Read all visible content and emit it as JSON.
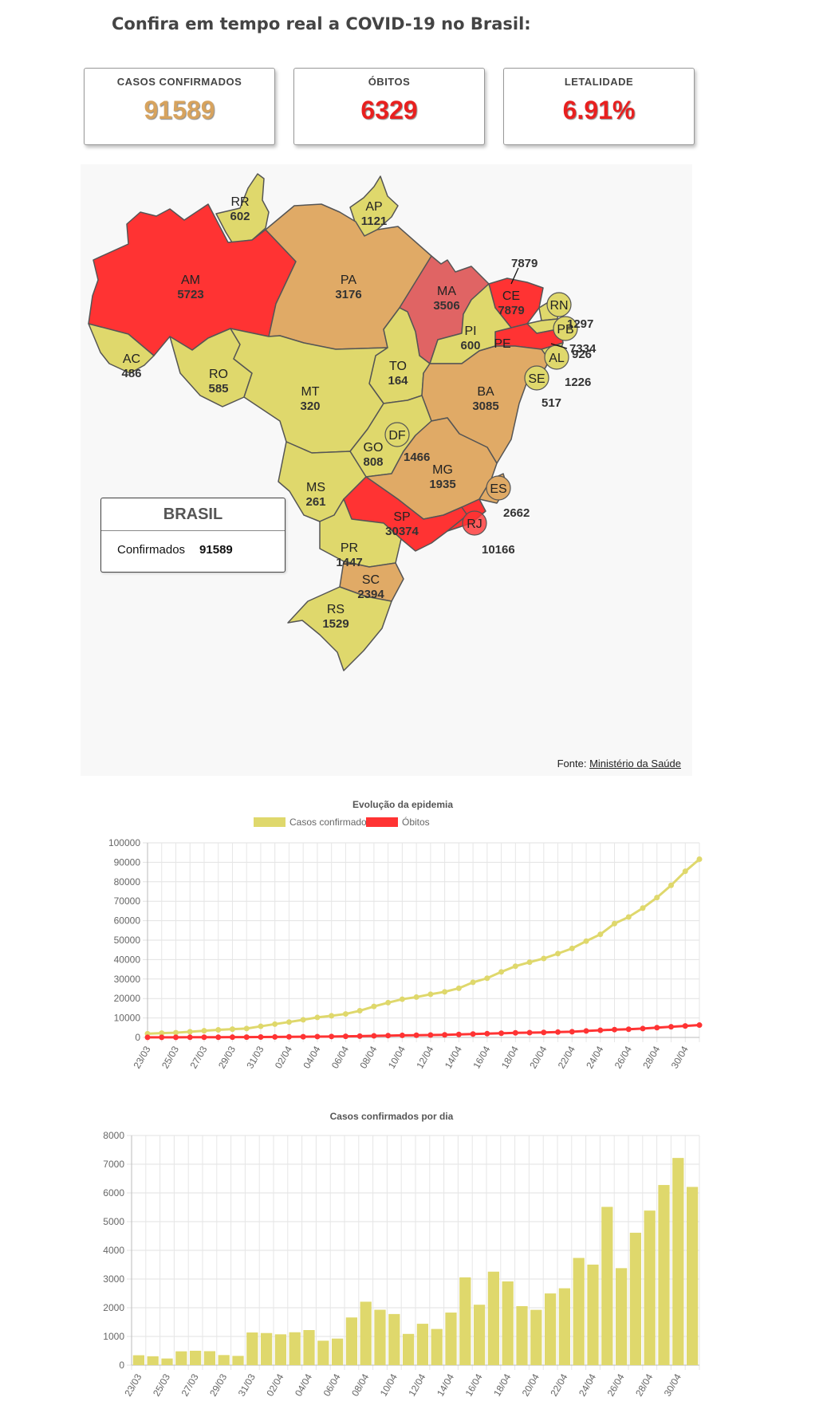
{
  "headline": "Confira em tempo real a COVID-19 no Brasil:",
  "cards": [
    {
      "label": "CASOS CONFIRMADOS",
      "value": "91589",
      "color": "#d7a35e"
    },
    {
      "label": "ÓBITOS",
      "value": "6329",
      "color": "#e8201f"
    },
    {
      "label": "LETALIDADE",
      "value": "6.91%",
      "color": "#e8201f"
    }
  ],
  "colors": {
    "low": "#dfd86c",
    "mid": "#e0aa66",
    "high": "#ff3333",
    "mixed": "#e06464"
  },
  "map": {
    "states": [
      {
        "abbr": "RR",
        "value": "602"
      },
      {
        "abbr": "AP",
        "value": "1121"
      },
      {
        "abbr": "AM",
        "value": "5723"
      },
      {
        "abbr": "PA",
        "value": "3176"
      },
      {
        "abbr": "MA",
        "value": "3506"
      },
      {
        "abbr": "CE",
        "value": "7879"
      },
      {
        "abbr": "RN",
        "value": "1297"
      },
      {
        "abbr": "PB",
        "value": "926"
      },
      {
        "abbr": "PE",
        "value": "7334"
      },
      {
        "abbr": "AL",
        "value": "1226"
      },
      {
        "abbr": "SE",
        "value": "517"
      },
      {
        "abbr": "PI",
        "value": "600"
      },
      {
        "abbr": "AC",
        "value": "486"
      },
      {
        "abbr": "RO",
        "value": "585"
      },
      {
        "abbr": "TO",
        "value": "164"
      },
      {
        "abbr": "MT",
        "value": "320"
      },
      {
        "abbr": "BA",
        "value": "3085"
      },
      {
        "abbr": "DF",
        "value": "1466"
      },
      {
        "abbr": "GO",
        "value": "808"
      },
      {
        "abbr": "MG",
        "value": "1935"
      },
      {
        "abbr": "ES",
        "value": "2662"
      },
      {
        "abbr": "MS",
        "value": "261"
      },
      {
        "abbr": "SP",
        "value": "30374"
      },
      {
        "abbr": "RJ",
        "value": "10166"
      },
      {
        "abbr": "PR",
        "value": "1447"
      },
      {
        "abbr": "SC",
        "value": "2394"
      },
      {
        "abbr": "RS",
        "value": "1529"
      }
    ],
    "legend_title": "BRASIL",
    "legend_label": "Confirmados",
    "legend_value": "91589",
    "source_prefix": "Fonte:",
    "source_link": "Ministério da Saúde"
  },
  "chart_data": [
    {
      "type": "line",
      "title": "Evolução da epidemia",
      "x": [
        "23/03",
        "24/03",
        "25/03",
        "26/03",
        "27/03",
        "28/03",
        "29/03",
        "30/03",
        "31/03",
        "01/04",
        "02/04",
        "03/04",
        "04/04",
        "05/04",
        "06/04",
        "07/04",
        "08/04",
        "09/04",
        "10/04",
        "11/04",
        "12/04",
        "13/04",
        "14/04",
        "15/04",
        "16/04",
        "17/04",
        "18/04",
        "19/04",
        "20/04",
        "21/04",
        "22/04",
        "23/04",
        "24/04",
        "25/04",
        "26/04",
        "27/04",
        "28/04",
        "29/04",
        "30/04",
        "01/05"
      ],
      "x_tick_labels": [
        "23/03",
        "25/03",
        "27/03",
        "29/03",
        "31/03",
        "02/04",
        "04/04",
        "06/04",
        "08/04",
        "10/04",
        "12/04",
        "14/04",
        "16/04",
        "18/04",
        "20/04",
        "22/04",
        "24/04",
        "26/04",
        "28/04",
        "30/04"
      ],
      "series": [
        {
          "name": "Casos confirmados",
          "color": "#dfd86c",
          "values": [
            1891,
            2201,
            2433,
            2915,
            3417,
            3904,
            4256,
            4579,
            5717,
            6836,
            7910,
            9056,
            10278,
            11130,
            12056,
            13717,
            15927,
            17857,
            19638,
            20727,
            22169,
            23430,
            25262,
            28320,
            30425,
            33682,
            36599,
            38654,
            40581,
            43079,
            45757,
            49492,
            52995,
            58509,
            61888,
            66501,
            71886,
            78162,
            85380,
            91589
          ]
        },
        {
          "name": "Óbitos",
          "color": "#ff3333",
          "values": [
            34,
            46,
            57,
            77,
            92,
            111,
            136,
            159,
            201,
            240,
            299,
            359,
            432,
            486,
            553,
            667,
            800,
            941,
            1056,
            1124,
            1223,
            1328,
            1532,
            1736,
            1924,
            2141,
            2347,
            2462,
            2575,
            2741,
            2906,
            3313,
            3670,
            4016,
            4205,
            4543,
            5017,
            5466,
            5901,
            6329
          ]
        }
      ],
      "ylim": [
        0,
        100000
      ],
      "y_ticks": [
        "0",
        "10000",
        "20000",
        "30000",
        "40000",
        "50000",
        "60000",
        "70000",
        "80000",
        "90000",
        "100000"
      ],
      "legend": "top"
    },
    {
      "type": "bar",
      "title": "Casos confirmados por dia",
      "x": [
        "23/03",
        "24/03",
        "25/03",
        "26/03",
        "27/03",
        "28/03",
        "29/03",
        "30/03",
        "31/03",
        "01/04",
        "02/04",
        "03/04",
        "04/04",
        "05/04",
        "06/04",
        "07/04",
        "08/04",
        "09/04",
        "10/04",
        "11/04",
        "12/04",
        "13/04",
        "14/04",
        "15/04",
        "16/04",
        "17/04",
        "18/04",
        "19/04",
        "20/04",
        "21/04",
        "22/04",
        "23/04",
        "24/04",
        "25/04",
        "26/04",
        "27/04",
        "28/04",
        "29/04",
        "30/04",
        "01/05"
      ],
      "x_tick_labels": [
        "23/03",
        "25/03",
        "27/03",
        "29/03",
        "31/03",
        "02/04",
        "04/04",
        "06/04",
        "08/04",
        "10/04",
        "12/04",
        "14/04",
        "16/04",
        "18/04",
        "20/04",
        "22/04",
        "24/04",
        "26/04",
        "28/04",
        "30/04"
      ],
      "series": [
        {
          "name": "Casos confirmados",
          "color": "#dfd86c",
          "values": [
            345,
            310,
            232,
            482,
            502,
            487,
            352,
            323,
            1138,
            1119,
            1074,
            1146,
            1222,
            852,
            926,
            1661,
            2210,
            1930,
            1781,
            1089,
            1442,
            1261,
            1832,
            3058,
            2105,
            3257,
            2917,
            2055,
            1927,
            2498,
            2678,
            3735,
            3503,
            5514,
            3379,
            4613,
            5385,
            6276,
            7218,
            6209
          ]
        }
      ],
      "ylim": [
        0,
        8000
      ],
      "y_ticks": [
        "0",
        "1000",
        "2000",
        "3000",
        "4000",
        "5000",
        "6000",
        "7000",
        "8000"
      ]
    }
  ]
}
